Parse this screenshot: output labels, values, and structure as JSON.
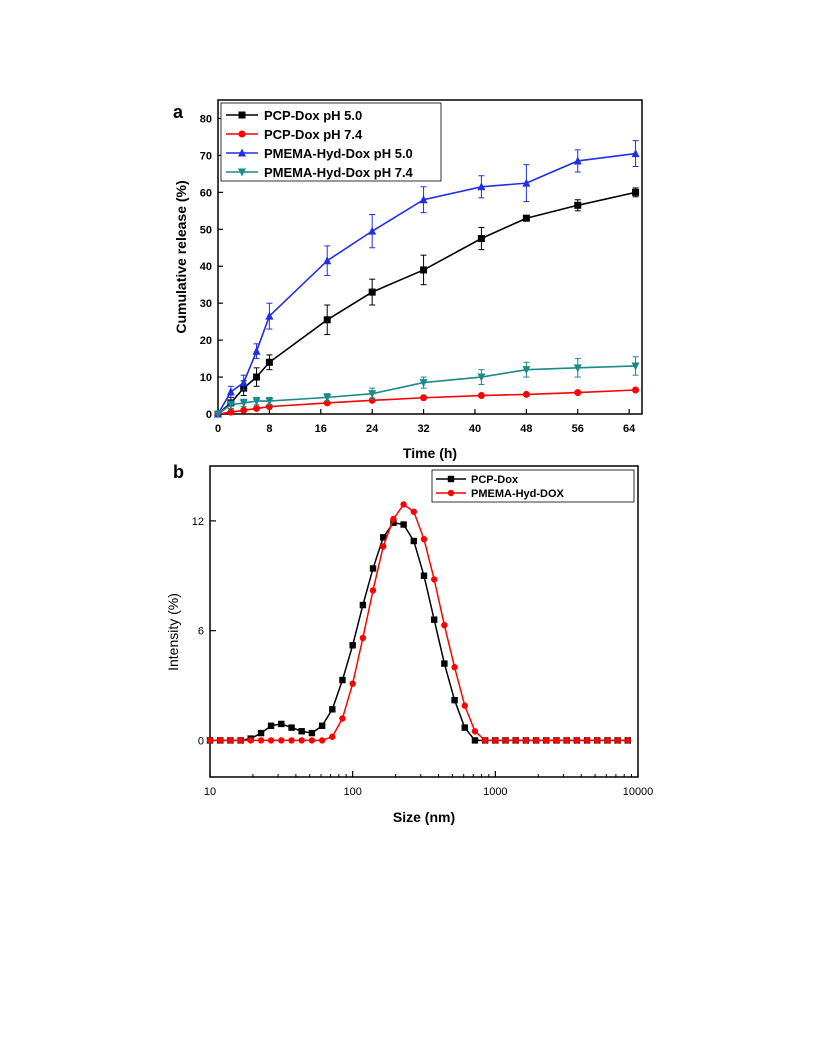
{
  "chart_data": [
    {
      "panel_label": "a",
      "type": "line",
      "xlabel": "Time (h)",
      "ylabel": "Cumulative release (%)",
      "xlim": [
        0,
        66
      ],
      "ylim": [
        0,
        85
      ],
      "xticks": [
        0,
        8,
        16,
        24,
        32,
        40,
        48,
        56,
        64
      ],
      "yticks": [
        0,
        10,
        20,
        30,
        40,
        50,
        60,
        70,
        80
      ],
      "legend_position": "top-left",
      "grid": false,
      "series": [
        {
          "name": "PCP-Dox pH 5.0",
          "color": "#000000",
          "marker": "square",
          "x": [
            0,
            2,
            4,
            6,
            8,
            17,
            24,
            32,
            41,
            48,
            56,
            65
          ],
          "y": [
            0,
            3,
            7,
            10,
            14,
            25.5,
            33,
            39,
            47.5,
            53,
            56.5,
            60
          ],
          "err": [
            0,
            1.5,
            2,
            2.5,
            2,
            4,
            3.5,
            4,
            3,
            0.5,
            1.5,
            1.2
          ]
        },
        {
          "name": "PCP-Dox pH 7.4",
          "color": "#ff0000",
          "marker": "circle",
          "x": [
            0,
            2,
            4,
            6,
            8,
            17,
            24,
            32,
            41,
            48,
            56,
            65
          ],
          "y": [
            0,
            0.5,
            1,
            1.5,
            2,
            3,
            3.7,
            4.4,
            5,
            5.3,
            5.8,
            6.5
          ],
          "err": [
            0,
            0.2,
            0.2,
            0.2,
            0.2,
            0.2,
            0.2,
            0.2,
            0.2,
            0.2,
            0.2,
            0.2
          ]
        },
        {
          "name": "PMEMA-Hyd-Dox pH 5.0",
          "color": "#1f2fe6",
          "marker": "triangle-up",
          "x": [
            0,
            2,
            4,
            6,
            8,
            17,
            24,
            32,
            41,
            48,
            56,
            65
          ],
          "y": [
            0,
            6,
            8.5,
            17,
            26.5,
            41.5,
            49.5,
            58,
            61.5,
            62.5,
            68.5,
            70.5
          ],
          "err": [
            0,
            1.5,
            2,
            2,
            3.5,
            4,
            4.5,
            3.5,
            3,
            5,
            3,
            3.5
          ]
        },
        {
          "name": "PMEMA-Hyd-Dox pH 7.4",
          "color": "#1a8a8a",
          "marker": "triangle-down",
          "x": [
            0,
            2,
            4,
            6,
            8,
            17,
            24,
            32,
            41,
            48,
            56,
            65
          ],
          "y": [
            0,
            2.5,
            3,
            3.5,
            3.5,
            4.5,
            5.5,
            8.5,
            10,
            12,
            12.5,
            13
          ],
          "err": [
            0,
            1,
            1,
            1,
            1,
            1,
            1.5,
            1.5,
            2,
            2,
            2.5,
            2.5
          ]
        }
      ]
    },
    {
      "panel_label": "b",
      "type": "line",
      "xlabel": "Size (nm)",
      "ylabel": "Intensity (%)",
      "xscale": "log",
      "xlim": [
        10,
        10000
      ],
      "ylim": [
        -2,
        15
      ],
      "xtick_labels": [
        "10",
        "100",
        "1000",
        "10000"
      ],
      "yticks": [
        0,
        6,
        12
      ],
      "legend_position": "top-right",
      "grid": false,
      "series": [
        {
          "name": "PCP-Dox",
          "color": "#000000",
          "marker": "square",
          "x": [
            10,
            11.8,
            13.9,
            16.4,
            19.3,
            22.8,
            26.8,
            31.6,
            37.3,
            43.9,
            51.8,
            61.1,
            72.0,
            84.8,
            100,
            117.9,
            138.9,
            163.8,
            193.1,
            227.6,
            268.3,
            316.2,
            372.8,
            439.4,
            518.0,
            610.5,
            719.7,
            848.3,
            1000,
            1178.8,
            1389.5,
            1637.9,
            1930.7,
            2275.8,
            2682.7,
            3162.3,
            3727.6,
            4393.9,
            5179.5,
            6105.4,
            7196.9,
            8483.4
          ],
          "y": [
            0,
            0,
            0,
            0,
            0.1,
            0.4,
            0.8,
            0.9,
            0.7,
            0.5,
            0.4,
            0.8,
            1.7,
            3.3,
            5.2,
            7.4,
            9.4,
            11.1,
            11.9,
            11.8,
            10.9,
            9.0,
            6.6,
            4.2,
            2.2,
            0.7,
            0,
            0,
            0,
            0,
            0,
            0,
            0,
            0,
            0,
            0,
            0,
            0,
            0,
            0,
            0,
            0
          ]
        },
        {
          "name": "PMEMA-Hyd-DOX",
          "color": "#ff0000",
          "marker": "circle",
          "x": [
            10,
            11.8,
            13.9,
            16.4,
            19.3,
            22.8,
            26.8,
            31.6,
            37.3,
            43.9,
            51.8,
            61.1,
            72.0,
            84.8,
            100,
            117.9,
            138.9,
            163.8,
            193.1,
            227.6,
            268.3,
            316.2,
            372.8,
            439.4,
            518.0,
            610.5,
            719.7,
            848.3,
            1000,
            1178.8,
            1389.5,
            1637.9,
            1930.7,
            2275.8,
            2682.7,
            3162.3,
            3727.6,
            4393.9,
            5179.5,
            6105.4,
            7196.9,
            8483.4
          ],
          "y": [
            0,
            0,
            0,
            0,
            0,
            0,
            0,
            0,
            0,
            0,
            0,
            0,
            0.2,
            1.2,
            3.1,
            5.6,
            8.2,
            10.6,
            12.1,
            12.9,
            12.5,
            11.0,
            8.8,
            6.3,
            4.0,
            1.9,
            0.5,
            0,
            0,
            0,
            0,
            0,
            0,
            0,
            0,
            0,
            0,
            0,
            0,
            0,
            0,
            0
          ]
        }
      ]
    }
  ]
}
